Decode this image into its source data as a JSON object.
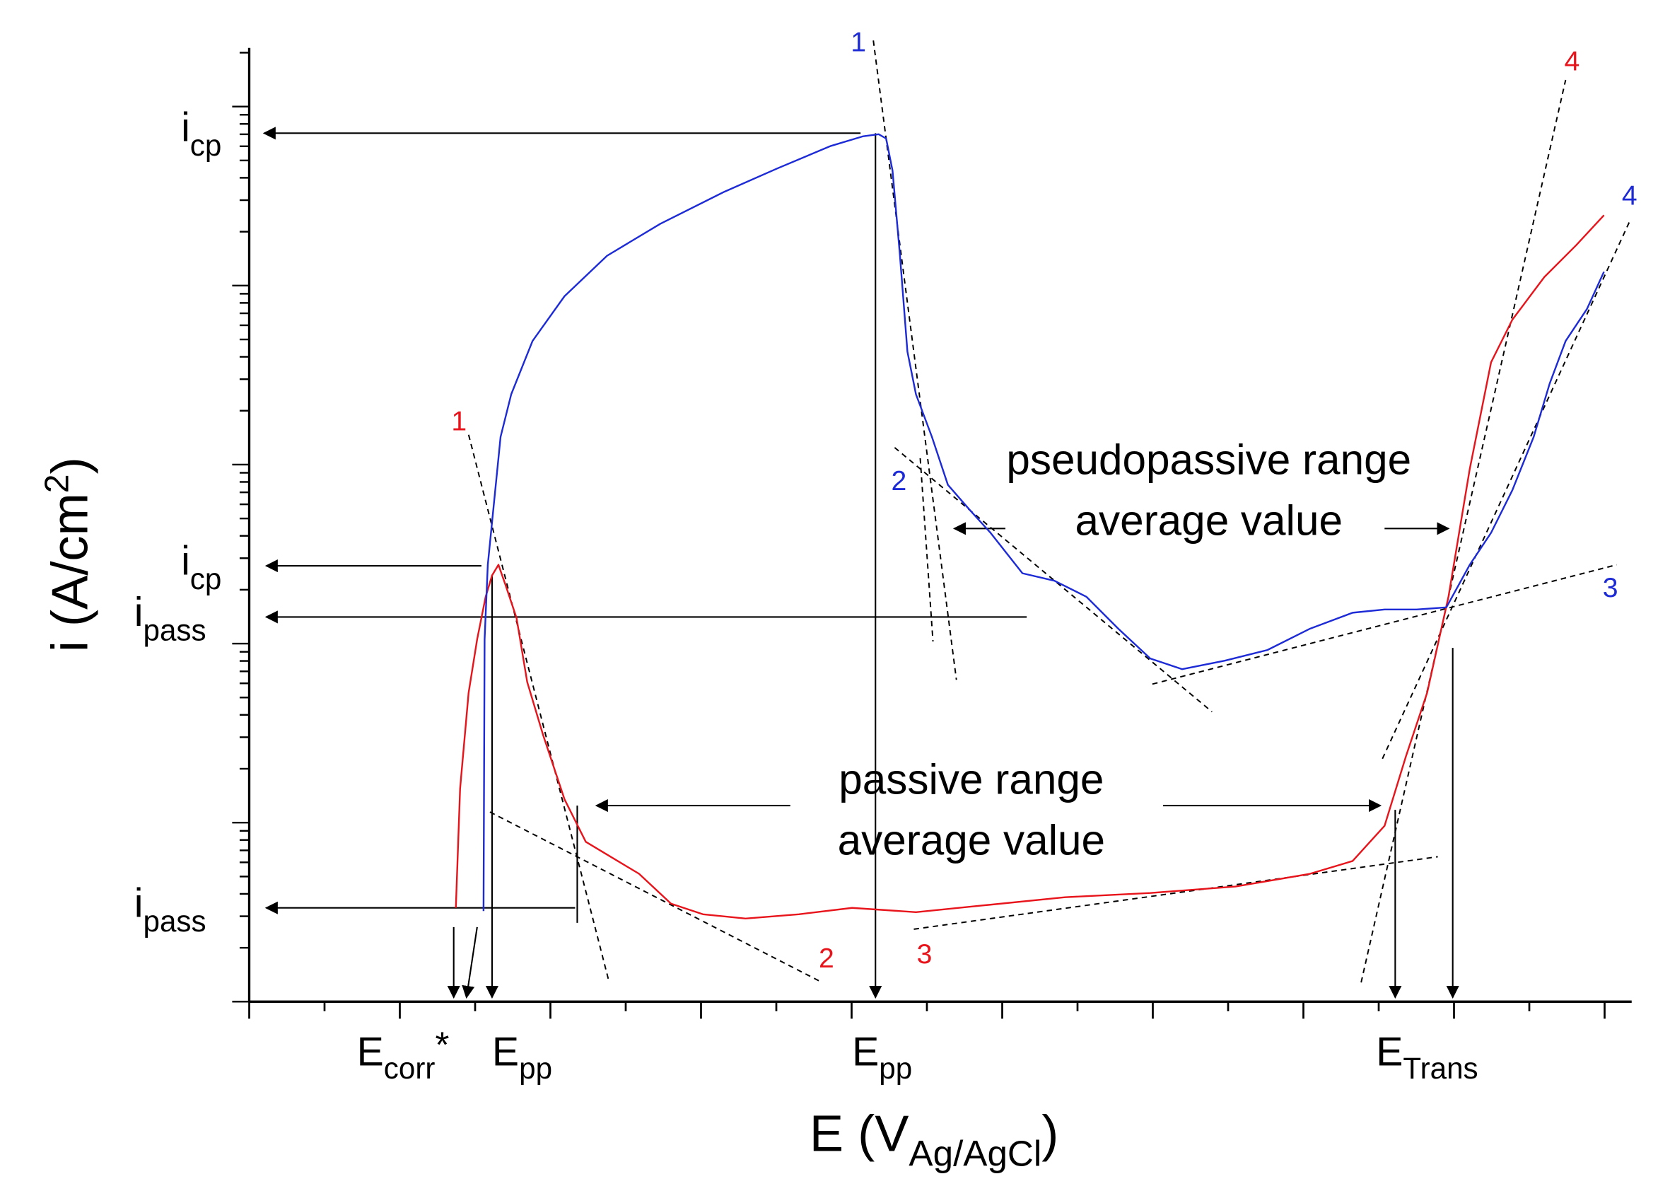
{
  "chart_data": {
    "type": "line",
    "title": "",
    "xlabel": {
      "main": "E (V",
      "sub": "Ag/AgCl",
      "close": ")"
    },
    "ylabel": {
      "main": "i (A/cm",
      "sup": "2",
      "close": ")"
    },
    "yscale": "log",
    "x_ticks_shown": false,
    "y_ticks_shown": false,
    "colors": {
      "red": "#e8141b",
      "blue": "#1d2bd6",
      "black": "#000000"
    },
    "series": [
      {
        "name": "red curve",
        "color": "red",
        "points": [
          [
            428,
            852
          ],
          [
            432,
            740
          ],
          [
            440,
            650
          ],
          [
            448,
            600
          ],
          [
            456,
            560
          ],
          [
            462,
            540
          ],
          [
            468,
            530
          ],
          [
            475,
            550
          ],
          [
            485,
            580
          ],
          [
            495,
            640
          ],
          [
            510,
            690
          ],
          [
            530,
            750
          ],
          [
            550,
            790
          ],
          [
            575,
            805
          ],
          [
            600,
            820
          ],
          [
            630,
            848
          ],
          [
            660,
            858
          ],
          [
            700,
            862
          ],
          [
            750,
            858
          ],
          [
            800,
            852
          ],
          [
            860,
            856
          ],
          [
            920,
            850
          ],
          [
            1000,
            842
          ],
          [
            1080,
            838
          ],
          [
            1160,
            832
          ],
          [
            1230,
            820
          ],
          [
            1270,
            808
          ],
          [
            1300,
            775
          ],
          [
            1320,
            710
          ],
          [
            1340,
            650
          ],
          [
            1360,
            560
          ],
          [
            1380,
            440
          ],
          [
            1400,
            340
          ],
          [
            1420,
            300
          ],
          [
            1450,
            260
          ],
          [
            1480,
            230
          ],
          [
            1506,
            202
          ]
        ]
      },
      {
        "name": "blue curve",
        "color": "blue",
        "points": [
          [
            454,
            855
          ],
          [
            455,
            600
          ],
          [
            458,
            530
          ],
          [
            462,
            490
          ],
          [
            470,
            410
          ],
          [
            480,
            370
          ],
          [
            500,
            320
          ],
          [
            530,
            278
          ],
          [
            570,
            240
          ],
          [
            620,
            210
          ],
          [
            680,
            180
          ],
          [
            730,
            158
          ],
          [
            780,
            137
          ],
          [
            810,
            128
          ],
          [
            825,
            126
          ],
          [
            832,
            130
          ],
          [
            838,
            160
          ],
          [
            845,
            240
          ],
          [
            852,
            330
          ],
          [
            860,
            370
          ],
          [
            875,
            410
          ],
          [
            890,
            455
          ],
          [
            910,
            478
          ],
          [
            930,
            500
          ],
          [
            960,
            538
          ],
          [
            990,
            545
          ],
          [
            1020,
            560
          ],
          [
            1050,
            590
          ],
          [
            1080,
            618
          ],
          [
            1110,
            628
          ],
          [
            1150,
            620
          ],
          [
            1190,
            610
          ],
          [
            1230,
            590
          ],
          [
            1270,
            575
          ],
          [
            1300,
            572
          ],
          [
            1330,
            572
          ],
          [
            1358,
            570
          ],
          [
            1380,
            530
          ],
          [
            1400,
            500
          ],
          [
            1420,
            460
          ],
          [
            1440,
            410
          ],
          [
            1455,
            360
          ],
          [
            1470,
            320
          ],
          [
            1490,
            290
          ],
          [
            1506,
            255
          ]
        ]
      }
    ],
    "tangent_lines": [
      {
        "color": "red",
        "points": [
          [
            440,
            408
          ],
          [
            572,
            922
          ]
        ]
      },
      {
        "color": "red",
        "points": [
          [
            460,
            762
          ],
          [
            772,
            922
          ]
        ]
      },
      {
        "color": "red",
        "points": [
          [
            858,
            872
          ],
          [
            1350,
            804
          ]
        ]
      },
      {
        "color": "red",
        "points": [
          [
            1278,
            922
          ],
          [
            1470,
            75
          ]
        ]
      },
      {
        "color": "blue",
        "points": [
          [
            820,
            38
          ],
          [
            898,
            638
          ]
        ]
      },
      {
        "color": "blue",
        "points": [
          [
            840,
            420
          ],
          [
            1138,
            668
          ]
        ]
      },
      {
        "color": "blue",
        "points": [
          [
            1082,
            642
          ],
          [
            1518,
            530
          ]
        ]
      },
      {
        "color": "blue",
        "points": [
          [
            1298,
            712
          ],
          [
            1530,
            208
          ]
        ]
      },
      {
        "color": "black",
        "points": [
          [
            864,
            430
          ],
          [
            876,
            602
          ]
        ]
      }
    ],
    "segment_labels": [
      {
        "text": "1",
        "color": "red",
        "x": 431,
        "y": 404
      },
      {
        "text": "2",
        "color": "red",
        "x": 776,
        "y": 908
      },
      {
        "text": "3",
        "color": "red",
        "x": 868,
        "y": 904
      },
      {
        "text": "4",
        "color": "red",
        "x": 1476,
        "y": 66
      },
      {
        "text": "1",
        "color": "blue",
        "x": 806,
        "y": 48
      },
      {
        "text": "2",
        "color": "blue",
        "x": 844,
        "y": 460
      },
      {
        "text": "3",
        "color": "blue",
        "x": 1512,
        "y": 560
      },
      {
        "text": "4",
        "color": "blue",
        "x": 1530,
        "y": 192
      }
    ],
    "left_labels": [
      {
        "base": "i",
        "sub": "cp",
        "y": 124
      },
      {
        "base": "i",
        "sub": "cp",
        "y": 531
      },
      {
        "base": "i",
        "sub": "pass",
        "y": 579
      },
      {
        "base": "i",
        "sub": "pass",
        "y": 852
      }
    ],
    "bottom_labels": [
      {
        "base": "E",
        "sub": "corr",
        "extra": "*",
        "x": 335
      },
      {
        "base": "E",
        "sub": "pp",
        "x": 462
      },
      {
        "base": "E",
        "sub": "pp",
        "x": 800
      },
      {
        "base": "E",
        "sub": "Trans",
        "x": 1292
      }
    ],
    "annotations": [
      {
        "lines": [
          "pseudopassive range",
          "average value"
        ],
        "x": 1135,
        "y": 445
      },
      {
        "lines": [
          "passive range",
          "average value"
        ],
        "x": 912,
        "y": 745
      }
    ]
  }
}
